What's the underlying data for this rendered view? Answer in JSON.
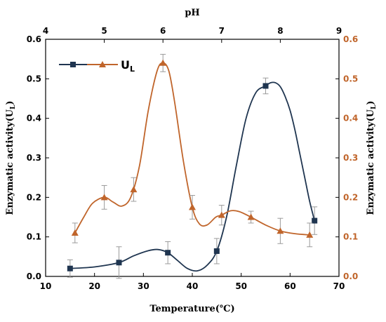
{
  "chart_data": {
    "type": "line",
    "bottom_axis": {
      "title": "Temperature(℃)",
      "min": 10,
      "max": 70,
      "ticks": [
        10,
        20,
        30,
        40,
        50,
        60,
        70
      ]
    },
    "top_axis": {
      "title": "pH",
      "min": 4,
      "max": 9,
      "ticks": [
        4,
        5,
        6,
        7,
        8,
        9
      ]
    },
    "left_axis": {
      "title": "Enzymatic activity(U",
      "title_sub": "L",
      "title_end": ")",
      "min": 0.0,
      "max": 0.6,
      "ticks": [
        0.0,
        0.1,
        0.2,
        0.3,
        0.4,
        0.5,
        0.6
      ],
      "tick_labels": [
        "0.0",
        "0.1",
        "0.2",
        "0.3",
        "0.4",
        "0.5",
        "0.6"
      ]
    },
    "right_axis": {
      "title": "Enzymatic activity(U",
      "title_sub": "L",
      "title_end": ")",
      "min": 0.0,
      "max": 0.6,
      "ticks": [
        0.0,
        0.1,
        0.2,
        0.3,
        0.4,
        0.5,
        0.6
      ],
      "tick_labels": [
        "0.0",
        "0.1",
        "0.2",
        "0.3",
        "0.4",
        "0.5",
        "0.6"
      ]
    },
    "series": [
      {
        "name": "",
        "axis_x": "bottom",
        "color": "#1f3550",
        "marker": "square",
        "x": [
          15,
          25,
          35,
          45,
          55,
          65
        ],
        "y": [
          0.02,
          0.035,
          0.06,
          0.064,
          0.482,
          0.141
        ],
        "err": [
          0.022,
          0.04,
          0.028,
          0.032,
          0.02,
          0.035
        ],
        "curve_x": [
          15,
          20,
          25,
          28,
          31,
          33,
          35,
          37,
          39,
          41,
          43,
          45,
          47,
          49,
          51,
          53,
          55,
          56,
          57,
          58,
          59,
          60,
          61,
          62,
          63,
          64,
          65
        ],
        "curve_y": [
          0.02,
          0.024,
          0.035,
          0.052,
          0.065,
          0.068,
          0.06,
          0.04,
          0.02,
          0.014,
          0.028,
          0.064,
          0.15,
          0.28,
          0.4,
          0.465,
          0.482,
          0.49,
          0.49,
          0.48,
          0.455,
          0.42,
          0.37,
          0.31,
          0.25,
          0.19,
          0.141
        ]
      },
      {
        "name": "U",
        "name_sub": "L",
        "axis_x": "top",
        "color": "#c0652b",
        "marker": "triangle",
        "x": [
          4.5,
          5.0,
          5.5,
          6.0,
          6.5,
          7.0,
          7.5,
          8.0,
          8.5
        ],
        "y": [
          0.11,
          0.2,
          0.22,
          0.54,
          0.175,
          0.155,
          0.15,
          0.115,
          0.105
        ],
        "err": [
          0.025,
          0.03,
          0.03,
          0.022,
          0.03,
          0.025,
          0.015,
          0.032,
          0.03
        ],
        "curve_x": [
          4.5,
          4.65,
          4.8,
          5.0,
          5.15,
          5.3,
          5.45,
          5.6,
          5.75,
          5.9,
          6.0,
          6.1,
          6.2,
          6.35,
          6.5,
          6.62,
          6.75,
          6.9,
          7.0,
          7.15,
          7.3,
          7.5,
          7.75,
          8.0,
          8.25,
          8.5
        ],
        "curve_y": [
          0.11,
          0.15,
          0.185,
          0.2,
          0.188,
          0.178,
          0.2,
          0.28,
          0.42,
          0.52,
          0.54,
          0.52,
          0.44,
          0.29,
          0.175,
          0.133,
          0.13,
          0.15,
          0.155,
          0.166,
          0.164,
          0.15,
          0.13,
          0.115,
          0.108,
          0.105
        ]
      }
    ],
    "legend": {
      "placement": "top-left"
    }
  }
}
